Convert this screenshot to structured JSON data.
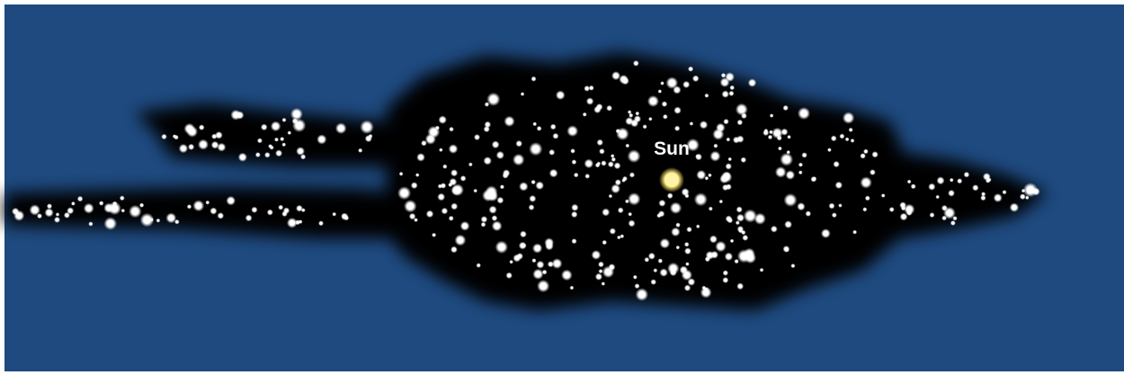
{
  "label": "Sun"
}
